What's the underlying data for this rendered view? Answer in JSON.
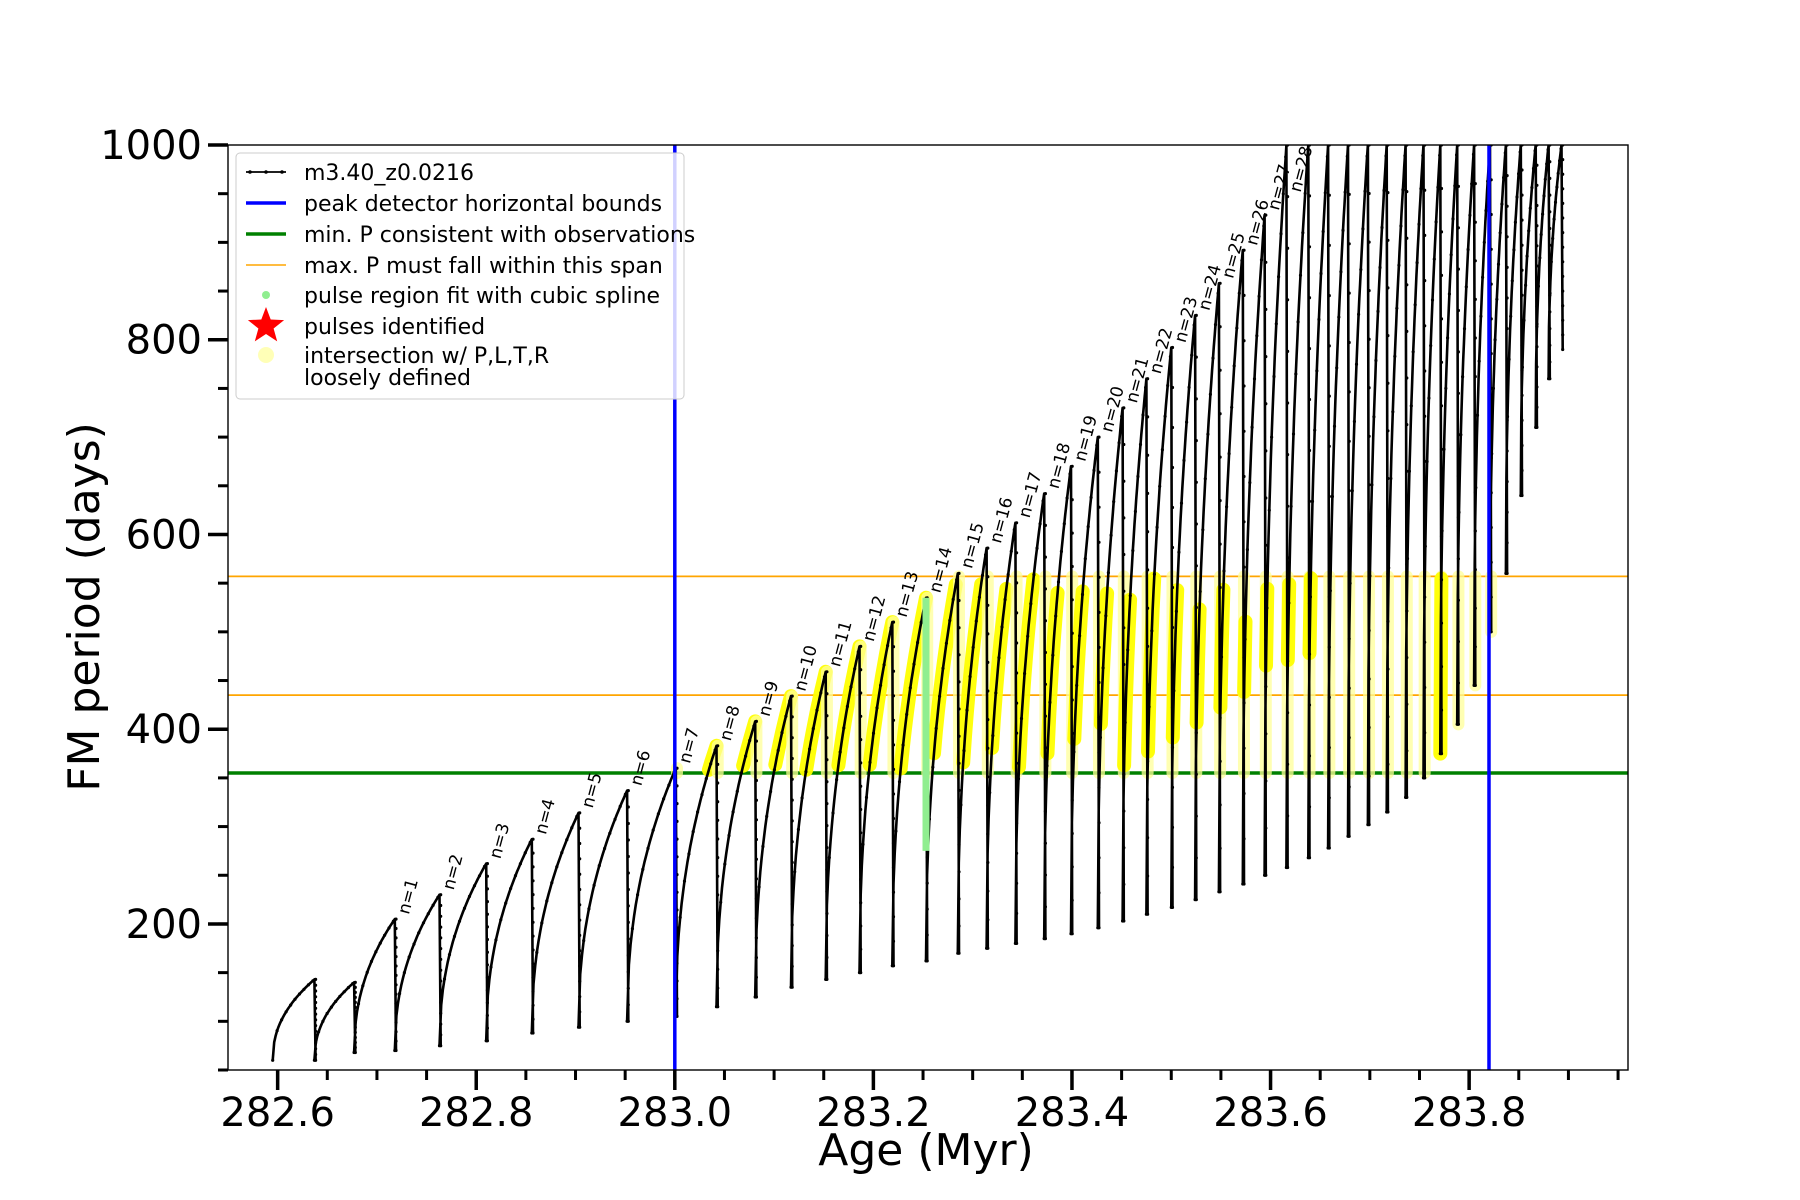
{
  "chart_data": {
    "type": "line",
    "xlabel": "Age (Myr)",
    "ylabel": "FM period (days)",
    "xlim": [
      282.55,
      283.96
    ],
    "ylim": [
      50,
      1000
    ],
    "x_ticks": [
      {
        "value": 282.6,
        "label": "282.6"
      },
      {
        "value": 282.8,
        "label": "282.8"
      },
      {
        "value": 283.0,
        "label": "283.0"
      },
      {
        "value": 283.2,
        "label": "283.2"
      },
      {
        "value": 283.4,
        "label": "283.4"
      },
      {
        "value": 283.6,
        "label": "283.6"
      },
      {
        "value": 283.8,
        "label": "283.8"
      }
    ],
    "y_ticks": [
      {
        "value": 200,
        "label": "200"
      },
      {
        "value": 400,
        "label": "400"
      },
      {
        "value": 600,
        "label": "600"
      },
      {
        "value": 800,
        "label": "800"
      },
      {
        "value": 1000,
        "label": "1000"
      }
    ],
    "x_minor_step": 0.05,
    "y_minor_step": 50,
    "grid": false,
    "legend_placement": "top-left",
    "legend": [
      {
        "label": "m3.40_z0.0216",
        "marker": "line-dot",
        "color": "#000000"
      },
      {
        "label": "peak detector horizontal bounds",
        "marker": "line",
        "color": "#0000ff"
      },
      {
        "label": "min. P consistent with observations",
        "marker": "line",
        "color": "#008000"
      },
      {
        "label": "max. P must fall within this span",
        "marker": "thin-line",
        "color": "#ffa500"
      },
      {
        "label": "pulse region fit with cubic spline",
        "marker": "dot",
        "color": "#90ee90"
      },
      {
        "label": "pulses identified",
        "marker": "star",
        "color": "#ff0000"
      },
      {
        "label": "intersection w/ P,L,T,R",
        "label2": "loosely defined",
        "marker": "circle",
        "color": "#ffff99"
      }
    ],
    "vertical_bounds": [
      283.0,
      283.82
    ],
    "min_period_line": 355,
    "max_period_span": [
      435,
      557
    ],
    "pulse_start": {
      "x": 282.595,
      "y": 60,
      "peak": 140
    },
    "pulses": [
      {
        "n": "",
        "age": 282.637,
        "peak": 143,
        "trough": 60,
        "label": ""
      },
      {
        "n": "",
        "age": 282.677,
        "peak": 140,
        "trough": 68,
        "label": ""
      },
      {
        "n": 1,
        "age": 282.718,
        "peak": 205,
        "trough": 70,
        "label": "n=1"
      },
      {
        "n": 2,
        "age": 282.763,
        "peak": 230,
        "trough": 75,
        "label": "n=2"
      },
      {
        "n": 3,
        "age": 282.81,
        "peak": 262,
        "trough": 80,
        "label": "n=3"
      },
      {
        "n": 4,
        "age": 282.856,
        "peak": 287,
        "trough": 88,
        "label": "n=4"
      },
      {
        "n": 5,
        "age": 282.903,
        "peak": 314,
        "trough": 94,
        "label": "n=5"
      },
      {
        "n": 6,
        "age": 282.952,
        "peak": 337,
        "trough": 100,
        "label": "n=6"
      },
      {
        "n": 7,
        "age": 283.001,
        "peak": 360,
        "trough": 105,
        "label": "n=7"
      },
      {
        "n": 8,
        "age": 283.042,
        "peak": 383,
        "trough": 115,
        "label": "n=8"
      },
      {
        "n": 9,
        "age": 283.081,
        "peak": 408,
        "trough": 125,
        "label": "n=9"
      },
      {
        "n": 10,
        "age": 283.117,
        "peak": 434,
        "trough": 135,
        "label": "n=10"
      },
      {
        "n": 11,
        "age": 283.152,
        "peak": 459,
        "trough": 143,
        "label": "n=11"
      },
      {
        "n": 12,
        "age": 283.186,
        "peak": 485,
        "trough": 150,
        "label": "n=12"
      },
      {
        "n": 13,
        "age": 283.219,
        "peak": 510,
        "trough": 157,
        "label": "n=13"
      },
      {
        "n": 14,
        "age": 283.253,
        "peak": 535,
        "trough": 162,
        "label": "n=14"
      },
      {
        "n": 15,
        "age": 283.285,
        "peak": 560,
        "trough": 170,
        "label": "n=15"
      },
      {
        "n": 16,
        "age": 283.314,
        "peak": 586,
        "trough": 175,
        "label": "n=16"
      },
      {
        "n": 17,
        "age": 283.343,
        "peak": 612,
        "trough": 180,
        "label": "n=17"
      },
      {
        "n": 18,
        "age": 283.372,
        "peak": 642,
        "trough": 185,
        "label": "n=18"
      },
      {
        "n": 19,
        "age": 283.399,
        "peak": 670,
        "trough": 190,
        "label": "n=19"
      },
      {
        "n": 20,
        "age": 283.426,
        "peak": 700,
        "trough": 196,
        "label": "n=20"
      },
      {
        "n": 21,
        "age": 283.451,
        "peak": 730,
        "trough": 203,
        "label": "n=21"
      },
      {
        "n": 22,
        "age": 283.475,
        "peak": 760,
        "trough": 210,
        "label": "n=22"
      },
      {
        "n": 23,
        "age": 283.5,
        "peak": 792,
        "trough": 217,
        "label": "n=23"
      },
      {
        "n": 24,
        "age": 283.524,
        "peak": 825,
        "trough": 225,
        "label": "n=24"
      },
      {
        "n": 25,
        "age": 283.548,
        "peak": 858,
        "trough": 233,
        "label": "n=25"
      },
      {
        "n": 26,
        "age": 283.572,
        "peak": 892,
        "trough": 241,
        "label": "n=26"
      },
      {
        "n": 27,
        "age": 283.594,
        "peak": 928,
        "trough": 250,
        "label": "n=27"
      },
      {
        "n": 28,
        "age": 283.616,
        "peak": 1000,
        "trough": 258,
        "label": "n=28"
      },
      {
        "n": "",
        "age": 283.638,
        "peak": 1000,
        "trough": 268,
        "label": ""
      },
      {
        "n": "",
        "age": 283.658,
        "peak": 1000,
        "trough": 278,
        "label": ""
      },
      {
        "n": "",
        "age": 283.678,
        "peak": 1000,
        "trough": 290,
        "label": ""
      },
      {
        "n": "",
        "age": 283.698,
        "peak": 1000,
        "trough": 302,
        "label": ""
      },
      {
        "n": "",
        "age": 283.717,
        "peak": 1000,
        "trough": 315,
        "label": ""
      },
      {
        "n": "",
        "age": 283.736,
        "peak": 1000,
        "trough": 330,
        "label": ""
      },
      {
        "n": "",
        "age": 283.754,
        "peak": 1000,
        "trough": 350,
        "label": ""
      },
      {
        "n": "",
        "age": 283.771,
        "peak": 1000,
        "trough": 375,
        "label": ""
      },
      {
        "n": "",
        "age": 283.788,
        "peak": 1000,
        "trough": 405,
        "label": ""
      },
      {
        "n": "",
        "age": 283.805,
        "peak": 1000,
        "trough": 445,
        "label": ""
      },
      {
        "n": "",
        "age": 283.821,
        "peak": 1000,
        "trough": 500,
        "label": ""
      },
      {
        "n": "",
        "age": 283.837,
        "peak": 1000,
        "trough": 560,
        "label": ""
      },
      {
        "n": "",
        "age": 283.852,
        "peak": 1000,
        "trough": 640,
        "label": ""
      },
      {
        "n": "",
        "age": 283.867,
        "peak": 1000,
        "trough": 710,
        "label": ""
      },
      {
        "n": "",
        "age": 283.88,
        "peak": 1000,
        "trough": 760,
        "label": ""
      },
      {
        "n": "",
        "age": 283.893,
        "peak": 1000,
        "trough": 790,
        "label": ""
      }
    ],
    "spline_region": {
      "x": 283.253,
      "y_range": [
        275,
        535
      ]
    }
  }
}
